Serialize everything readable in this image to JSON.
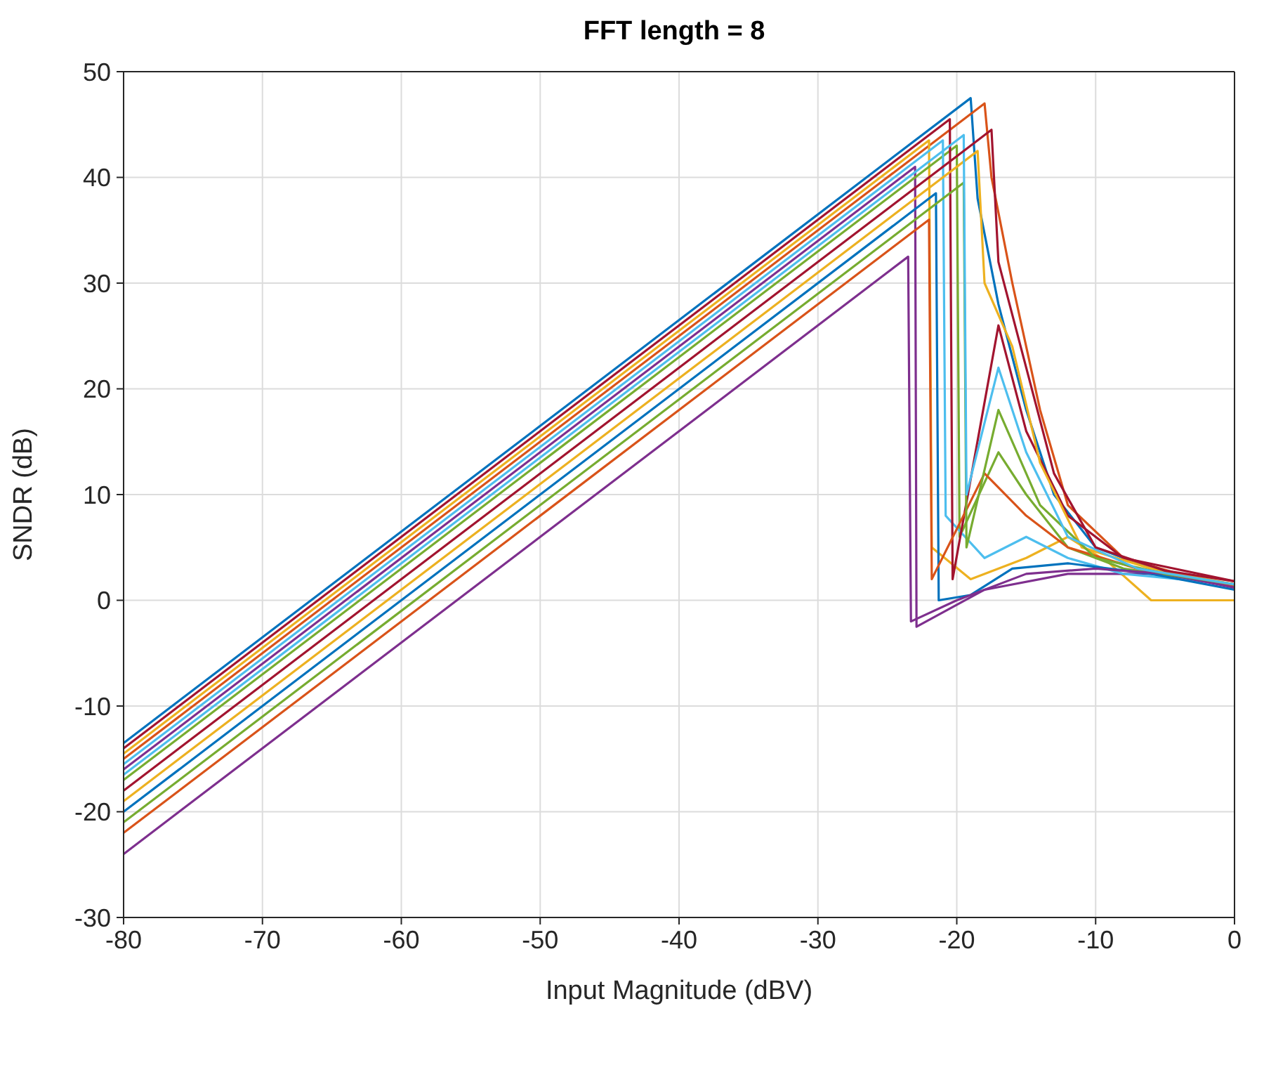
{
  "chart_data": {
    "type": "line",
    "title": "FFT   length = 8",
    "xlabel": "Input Magnitude (dBV)",
    "ylabel": "SNDR (dB)",
    "xlim": [
      -80,
      0
    ],
    "xticks": [
      -80,
      -70,
      -60,
      -50,
      -40,
      -30,
      -20,
      -10,
      0
    ],
    "ylim": [
      -30,
      50
    ],
    "yticks": [
      -30,
      -20,
      -10,
      0,
      10,
      20,
      30,
      40,
      50
    ],
    "grid": true,
    "marker": "none",
    "line_style": "solid",
    "series": [
      {
        "color": "#0072bd",
        "x": [
          -80,
          -19,
          -18.5,
          -17,
          -15,
          -13,
          -10,
          -5,
          0
        ],
        "values": [
          -13.5,
          47.5,
          38,
          28,
          18,
          10,
          5,
          2.5,
          1.5
        ]
      },
      {
        "color": "#d95319",
        "x": [
          -80,
          -18,
          -17.5,
          -16,
          -14,
          -12,
          -8,
          -4,
          0
        ],
        "values": [
          -15,
          47,
          40,
          30,
          18,
          9,
          4,
          2.5,
          1.2
        ]
      },
      {
        "color": "#edb120",
        "x": [
          -80,
          -22,
          -21.8,
          -19,
          -15,
          -12,
          -9,
          -6,
          0
        ],
        "values": [
          -14.5,
          43.5,
          5,
          2,
          4,
          6,
          3.5,
          0,
          0
        ]
      },
      {
        "color": "#7e2f8e",
        "x": [
          -80,
          -23,
          -22.9,
          -18,
          -12,
          -6,
          0
        ],
        "values": [
          -16,
          41,
          -2.5,
          1,
          2.5,
          2.5,
          1.5
        ]
      },
      {
        "color": "#77ac30",
        "x": [
          -80,
          -20,
          -19.8,
          -17,
          -15,
          -12,
          -8,
          -3,
          0
        ],
        "values": [
          -17,
          43,
          6,
          14,
          10,
          5,
          3,
          2,
          1.5
        ]
      },
      {
        "color": "#4dbeee",
        "x": [
          -80,
          -21,
          -20.8,
          -18,
          -15,
          -12,
          -8,
          0
        ],
        "values": [
          -15.5,
          43.5,
          8,
          4,
          6,
          4,
          2.5,
          1.5
        ]
      },
      {
        "color": "#a2142f",
        "x": [
          -80,
          -20.5,
          -20.3,
          -17,
          -15,
          -12,
          -8,
          0
        ],
        "values": [
          -14,
          45.5,
          2,
          26,
          16,
          8,
          4,
          1.8
        ]
      },
      {
        "color": "#0072bd",
        "x": [
          -80,
          -21.5,
          -21.3,
          -19,
          -16,
          -12,
          -6,
          0
        ],
        "values": [
          -20,
          38.5,
          0,
          0.5,
          3,
          3.5,
          2.5,
          1
        ]
      },
      {
        "color": "#d95319",
        "x": [
          -80,
          -22,
          -21.8,
          -18,
          -15,
          -12,
          -7,
          0
        ],
        "values": [
          -22,
          36,
          2,
          12,
          8,
          5,
          3,
          1.3
        ]
      },
      {
        "color": "#edb120",
        "x": [
          -80,
          -18.5,
          -18,
          -16,
          -14,
          -11,
          -6,
          0
        ],
        "values": [
          -19,
          42.5,
          30,
          24,
          13,
          5,
          3,
          1.5
        ]
      },
      {
        "color": "#7e2f8e",
        "x": [
          -80,
          -23.5,
          -23.3,
          -20,
          -15,
          -10,
          -5,
          0
        ],
        "values": [
          -24,
          32.5,
          -2,
          0,
          2.5,
          3,
          2.5,
          1.2
        ]
      },
      {
        "color": "#77ac30",
        "x": [
          -80,
          -19.5,
          -19.3,
          -17,
          -14,
          -10,
          -5,
          0
        ],
        "values": [
          -21,
          39.5,
          5,
          18,
          9,
          4,
          2.5,
          1.5
        ]
      },
      {
        "color": "#4dbeee",
        "x": [
          -80,
          -19.5,
          -19.3,
          -17,
          -15,
          -12,
          -7,
          0
        ],
        "values": [
          -16.5,
          44,
          10,
          22,
          14,
          6,
          3,
          1.5
        ]
      },
      {
        "color": "#a2142f",
        "x": [
          -80,
          -17.5,
          -17,
          -15,
          -13,
          -10,
          -5,
          0
        ],
        "values": [
          -18,
          44.5,
          32,
          22,
          12,
          5,
          2.8,
          1.8
        ]
      }
    ]
  }
}
